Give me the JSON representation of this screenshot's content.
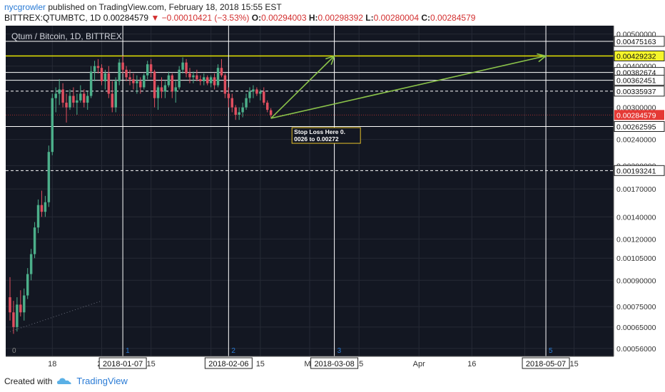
{
  "header": {
    "author": "nycgrowler",
    "published_text": "published on TradingView.com, February 18, 2018 15:55 EST",
    "symbol": "BITTREX:QTUMBTC, 1D",
    "last": "0.00284579",
    "change": "▼ −0.00010421 (−3.53%)",
    "o_label": "O:",
    "o_value": "0.00294003",
    "h_label": "H:",
    "h_value": "0.00298392",
    "l_label": "L:",
    "l_value": "0.00280004",
    "c_label": "C:",
    "c_value": "0.00284579"
  },
  "footer": {
    "created_with": "Created with",
    "brand": "TradingView"
  },
  "colors": {
    "background": "#131722",
    "grid": "#262a35",
    "up": "#4caf8a",
    "down": "#e04f5f",
    "yellow_line": "#e6e600",
    "arrow": "#8bc34a",
    "last_price_bg": "#e53935"
  },
  "chart_data": {
    "type": "candlestick",
    "title": "Qtum / Bitcoin, 1D, BITTREX",
    "y_scale": "log",
    "ylim": [
      0.00053,
      0.0053
    ],
    "x_start": "2017-12-06",
    "x_end": "2018-05-25",
    "x_ticks": [
      {
        "date": "2017-12-18",
        "label": "18"
      },
      {
        "date": "2018-01-01",
        "label": "20"
      },
      {
        "date": "2018-01-15",
        "label": "15"
      },
      {
        "date": "2018-02-01",
        "label": "F"
      },
      {
        "date": "2018-02-15",
        "label": "15"
      },
      {
        "date": "2018-03-01",
        "label": "Ma"
      },
      {
        "date": "2018-03-15",
        "label": "15"
      },
      {
        "date": "2018-04-01",
        "label": "Apr"
      },
      {
        "date": "2018-04-16",
        "label": "16"
      },
      {
        "date": "2018-05-01",
        "label": "M"
      },
      {
        "date": "2018-05-15",
        "label": "15"
      }
    ],
    "y_ticks": [
      "0.00500000",
      "0.00400000",
      "0.00300000",
      "0.00240000",
      "0.00200000",
      "0.00170000",
      "0.00140000",
      "0.00120000",
      "0.00105000",
      "0.00090000",
      "0.00075000",
      "0.00065000",
      "0.00056000"
    ],
    "y_tick_values": [
      0.005,
      0.004,
      0.003,
      0.0024,
      0.002,
      0.0017,
      0.0014,
      0.0012,
      0.00105,
      0.0009,
      0.00075,
      0.00065,
      0.00056
    ],
    "levels": [
      {
        "value": "0.00475163",
        "y": 0.00475163,
        "style": "solid",
        "color": "#ffffff"
      },
      {
        "value": "0.00429232",
        "y": 0.00429232,
        "style": "solid",
        "color": "#e6e600"
      },
      {
        "value": "0.00382674",
        "y": 0.00382674,
        "style": "solid",
        "color": "#ffffff"
      },
      {
        "value": "0.00362451",
        "y": 0.00362451,
        "style": "solid",
        "color": "#ffffff"
      },
      {
        "value": "0.00335937",
        "y": 0.00335937,
        "style": "dashed",
        "color": "#ffffff"
      },
      {
        "value": "0.00262595",
        "y": 0.00262595,
        "style": "solid",
        "color": "#ffffff"
      },
      {
        "value": "0.00193241",
        "y": 0.00193241,
        "style": "dashed",
        "color": "#ffffff"
      }
    ],
    "last_price": {
      "value": "0.00284579",
      "y": 0.00284579
    },
    "vertical_lines": [
      {
        "date": "2018-01-07",
        "label": "2018-01-07",
        "marker": "1"
      },
      {
        "date": "2018-02-06",
        "label": "2018-02-06",
        "marker": "2"
      },
      {
        "date": "2018-03-08",
        "label": "2018-03-08",
        "marker": "3"
      },
      {
        "date": "2018-05-07",
        "label": "2018-05-07",
        "marker": "5"
      }
    ],
    "start_marker": "0",
    "arrows": [
      {
        "from": [
          "2018-02-18",
          0.00278
        ],
        "to": [
          "2018-03-08",
          0.00429232
        ]
      },
      {
        "from": [
          "2018-02-18",
          0.00278
        ],
        "to": [
          "2018-05-07",
          0.00429232
        ]
      }
    ],
    "trend_line": {
      "from": [
        "2017-12-06",
        0.00063
      ],
      "to": [
        "2018-01-01",
        0.00078
      ]
    },
    "annotation": {
      "lines": [
        "Stop Loss Here 0.",
        "0026 to 0.00272"
      ],
      "date": "2018-02-26",
      "y": 0.00258
    },
    "candles": [
      {
        "d": "2017-12-06",
        "o": 0.0008,
        "h": 0.00092,
        "l": 0.00068,
        "c": 0.00072
      },
      {
        "d": "2017-12-07",
        "o": 0.00072,
        "h": 0.00078,
        "l": 0.00062,
        "c": 0.00065
      },
      {
        "d": "2017-12-08",
        "o": 0.00065,
        "h": 0.0008,
        "l": 0.00063,
        "c": 0.00076
      },
      {
        "d": "2017-12-09",
        "o": 0.00076,
        "h": 0.00084,
        "l": 0.0007,
        "c": 0.00072
      },
      {
        "d": "2017-12-10",
        "o": 0.00072,
        "h": 0.00085,
        "l": 0.00068,
        "c": 0.00081
      },
      {
        "d": "2017-12-11",
        "o": 0.00081,
        "h": 0.00098,
        "l": 0.00079,
        "c": 0.00094
      },
      {
        "d": "2017-12-12",
        "o": 0.00094,
        "h": 0.00112,
        "l": 0.0009,
        "c": 0.00108
      },
      {
        "d": "2017-12-13",
        "o": 0.00108,
        "h": 0.00135,
        "l": 0.00105,
        "c": 0.0013
      },
      {
        "d": "2017-12-14",
        "o": 0.0013,
        "h": 0.00158,
        "l": 0.00125,
        "c": 0.00152
      },
      {
        "d": "2017-12-15",
        "o": 0.00152,
        "h": 0.00168,
        "l": 0.0014,
        "c": 0.00145
      },
      {
        "d": "2017-12-16",
        "o": 0.00145,
        "h": 0.00162,
        "l": 0.0014,
        "c": 0.00155
      },
      {
        "d": "2017-12-17",
        "o": 0.00155,
        "h": 0.0023,
        "l": 0.0015,
        "c": 0.0022
      },
      {
        "d": "2017-12-18",
        "o": 0.0022,
        "h": 0.0033,
        "l": 0.00215,
        "c": 0.0032
      },
      {
        "d": "2017-12-19",
        "o": 0.0032,
        "h": 0.00345,
        "l": 0.0029,
        "c": 0.0033
      },
      {
        "d": "2017-12-20",
        "o": 0.0033,
        "h": 0.00365,
        "l": 0.00305,
        "c": 0.0034
      },
      {
        "d": "2017-12-21",
        "o": 0.0034,
        "h": 0.00355,
        "l": 0.003,
        "c": 0.0031
      },
      {
        "d": "2017-12-22",
        "o": 0.0031,
        "h": 0.0033,
        "l": 0.0027,
        "c": 0.003
      },
      {
        "d": "2017-12-23",
        "o": 0.003,
        "h": 0.0034,
        "l": 0.00295,
        "c": 0.00325
      },
      {
        "d": "2017-12-24",
        "o": 0.00325,
        "h": 0.00345,
        "l": 0.003,
        "c": 0.0031
      },
      {
        "d": "2017-12-25",
        "o": 0.0031,
        "h": 0.0033,
        "l": 0.00285,
        "c": 0.00315
      },
      {
        "d": "2017-12-26",
        "o": 0.00315,
        "h": 0.0035,
        "l": 0.0031,
        "c": 0.0033
      },
      {
        "d": "2017-12-27",
        "o": 0.0033,
        "h": 0.0034,
        "l": 0.003,
        "c": 0.0031
      },
      {
        "d": "2017-12-28",
        "o": 0.0031,
        "h": 0.00335,
        "l": 0.00295,
        "c": 0.00325
      },
      {
        "d": "2017-12-29",
        "o": 0.00325,
        "h": 0.004,
        "l": 0.0032,
        "c": 0.00385
      },
      {
        "d": "2017-12-30",
        "o": 0.00385,
        "h": 0.00415,
        "l": 0.0036,
        "c": 0.004
      },
      {
        "d": "2017-12-31",
        "o": 0.004,
        "h": 0.0042,
        "l": 0.0038,
        "c": 0.00395
      },
      {
        "d": "2018-01-01",
        "o": 0.00395,
        "h": 0.00405,
        "l": 0.0035,
        "c": 0.0036
      },
      {
        "d": "2018-01-02",
        "o": 0.0036,
        "h": 0.0039,
        "l": 0.0034,
        "c": 0.0038
      },
      {
        "d": "2018-01-03",
        "o": 0.0038,
        "h": 0.004,
        "l": 0.0032,
        "c": 0.0033
      },
      {
        "d": "2018-01-04",
        "o": 0.0033,
        "h": 0.0036,
        "l": 0.0029,
        "c": 0.003
      },
      {
        "d": "2018-01-05",
        "o": 0.003,
        "h": 0.0037,
        "l": 0.0029,
        "c": 0.0036
      },
      {
        "d": "2018-01-06",
        "o": 0.0036,
        "h": 0.0042,
        "l": 0.0035,
        "c": 0.0041
      },
      {
        "d": "2018-01-07",
        "o": 0.0041,
        "h": 0.0043,
        "l": 0.0038,
        "c": 0.0039
      },
      {
        "d": "2018-01-08",
        "o": 0.0039,
        "h": 0.004,
        "l": 0.0036,
        "c": 0.0037
      },
      {
        "d": "2018-01-09",
        "o": 0.0037,
        "h": 0.0039,
        "l": 0.0035,
        "c": 0.00365
      },
      {
        "d": "2018-01-10",
        "o": 0.00365,
        "h": 0.0038,
        "l": 0.0034,
        "c": 0.00355
      },
      {
        "d": "2018-01-11",
        "o": 0.00355,
        "h": 0.00375,
        "l": 0.0033,
        "c": 0.0036
      },
      {
        "d": "2018-01-12",
        "o": 0.0036,
        "h": 0.0037,
        "l": 0.0033,
        "c": 0.00345
      },
      {
        "d": "2018-01-13",
        "o": 0.00345,
        "h": 0.0038,
        "l": 0.0034,
        "c": 0.00375
      },
      {
        "d": "2018-01-14",
        "o": 0.00375,
        "h": 0.00415,
        "l": 0.00365,
        "c": 0.00405
      },
      {
        "d": "2018-01-15",
        "o": 0.00405,
        "h": 0.0042,
        "l": 0.0037,
        "c": 0.00385
      },
      {
        "d": "2018-01-16",
        "o": 0.00385,
        "h": 0.0039,
        "l": 0.003,
        "c": 0.0032
      },
      {
        "d": "2018-01-17",
        "o": 0.0032,
        "h": 0.0035,
        "l": 0.00295,
        "c": 0.00345
      },
      {
        "d": "2018-01-18",
        "o": 0.00345,
        "h": 0.0037,
        "l": 0.0032,
        "c": 0.00335
      },
      {
        "d": "2018-01-19",
        "o": 0.00335,
        "h": 0.0036,
        "l": 0.0032,
        "c": 0.0035
      },
      {
        "d": "2018-01-20",
        "o": 0.0035,
        "h": 0.00385,
        "l": 0.00345,
        "c": 0.00375
      },
      {
        "d": "2018-01-21",
        "o": 0.00375,
        "h": 0.0038,
        "l": 0.0032,
        "c": 0.00335
      },
      {
        "d": "2018-01-22",
        "o": 0.00335,
        "h": 0.0036,
        "l": 0.0031,
        "c": 0.00345
      },
      {
        "d": "2018-01-23",
        "o": 0.00345,
        "h": 0.004,
        "l": 0.0034,
        "c": 0.0039
      },
      {
        "d": "2018-01-24",
        "o": 0.0039,
        "h": 0.00425,
        "l": 0.0038,
        "c": 0.0041
      },
      {
        "d": "2018-01-25",
        "o": 0.0041,
        "h": 0.0042,
        "l": 0.0037,
        "c": 0.0038
      },
      {
        "d": "2018-01-26",
        "o": 0.0038,
        "h": 0.00395,
        "l": 0.00355,
        "c": 0.0037
      },
      {
        "d": "2018-01-27",
        "o": 0.0037,
        "h": 0.00385,
        "l": 0.00355,
        "c": 0.00375
      },
      {
        "d": "2018-01-28",
        "o": 0.00375,
        "h": 0.0039,
        "l": 0.0036,
        "c": 0.00365
      },
      {
        "d": "2018-01-29",
        "o": 0.00365,
        "h": 0.00375,
        "l": 0.0035,
        "c": 0.0036
      },
      {
        "d": "2018-01-30",
        "o": 0.0036,
        "h": 0.0038,
        "l": 0.0035,
        "c": 0.0037
      },
      {
        "d": "2018-01-31",
        "o": 0.0037,
        "h": 0.00375,
        "l": 0.0035,
        "c": 0.00355
      },
      {
        "d": "2018-02-01",
        "o": 0.00355,
        "h": 0.00375,
        "l": 0.00345,
        "c": 0.0037
      },
      {
        "d": "2018-02-02",
        "o": 0.0037,
        "h": 0.0038,
        "l": 0.0034,
        "c": 0.0035
      },
      {
        "d": "2018-02-03",
        "o": 0.0035,
        "h": 0.00405,
        "l": 0.00345,
        "c": 0.00395
      },
      {
        "d": "2018-02-04",
        "o": 0.00395,
        "h": 0.0042,
        "l": 0.0037,
        "c": 0.00375
      },
      {
        "d": "2018-02-05",
        "o": 0.00375,
        "h": 0.0038,
        "l": 0.0032,
        "c": 0.0033
      },
      {
        "d": "2018-02-06",
        "o": 0.0033,
        "h": 0.00345,
        "l": 0.003,
        "c": 0.0032
      },
      {
        "d": "2018-02-07",
        "o": 0.0032,
        "h": 0.0033,
        "l": 0.0029,
        "c": 0.003
      },
      {
        "d": "2018-02-08",
        "o": 0.003,
        "h": 0.00305,
        "l": 0.00275,
        "c": 0.00285
      },
      {
        "d": "2018-02-09",
        "o": 0.00285,
        "h": 0.003,
        "l": 0.00275,
        "c": 0.0029
      },
      {
        "d": "2018-02-10",
        "o": 0.0029,
        "h": 0.0031,
        "l": 0.0028,
        "c": 0.003
      },
      {
        "d": "2018-02-11",
        "o": 0.003,
        "h": 0.0033,
        "l": 0.00295,
        "c": 0.0032
      },
      {
        "d": "2018-02-12",
        "o": 0.0032,
        "h": 0.00345,
        "l": 0.0031,
        "c": 0.00335
      },
      {
        "d": "2018-02-13",
        "o": 0.00335,
        "h": 0.0035,
        "l": 0.0032,
        "c": 0.0034
      },
      {
        "d": "2018-02-14",
        "o": 0.0034,
        "h": 0.00345,
        "l": 0.00325,
        "c": 0.0033
      },
      {
        "d": "2018-02-15",
        "o": 0.0033,
        "h": 0.0034,
        "l": 0.00315,
        "c": 0.00335
      },
      {
        "d": "2018-02-16",
        "o": 0.00335,
        "h": 0.00345,
        "l": 0.00305,
        "c": 0.0031
      },
      {
        "d": "2018-02-17",
        "o": 0.0031,
        "h": 0.00315,
        "l": 0.0029,
        "c": 0.00295
      },
      {
        "d": "2018-02-18",
        "o": 0.00294003,
        "h": 0.00298392,
        "l": 0.00280004,
        "c": 0.00284579
      }
    ]
  }
}
